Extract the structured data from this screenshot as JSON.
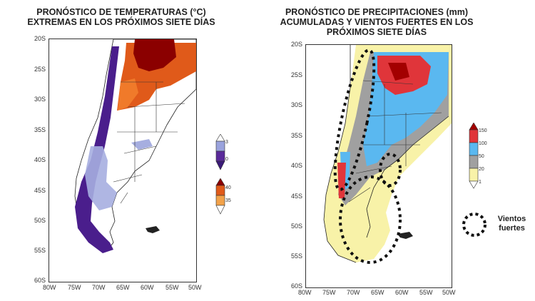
{
  "left_panel": {
    "title_line1": "PRONÓSTICO DE TEMPERATURAS (°C)",
    "title_line2": "EXTREMAS EN LOS PRÓXIMOS SIETE DÍAS",
    "lat_labels": [
      "20S",
      "25S",
      "30S",
      "35S",
      "40S",
      "45S",
      "50S",
      "55S",
      "60S"
    ],
    "lon_labels": [
      "80W",
      "75W",
      "70W",
      "65W",
      "60W",
      "55W",
      "50W"
    ],
    "legend_cold": {
      "labels": [
        "3",
        "0"
      ],
      "colors": [
        "#9aa3dd",
        "#5a2a9a",
        "#3b1a78"
      ]
    },
    "legend_hot": {
      "labels": [
        "40",
        "35"
      ],
      "colors": [
        "#8b0000",
        "#e05a1a",
        "#f2a24a"
      ]
    }
  },
  "right_panel": {
    "title_line1": "PRONÓSTICO DE PRECIPITACIONES (mm)",
    "title_line2": "ACUMULADAS Y VIENTOS FUERTES EN LOS",
    "title_line3": "PRÓXIMOS SIETE DÍAS",
    "lat_labels": [
      "20S",
      "25S",
      "30S",
      "35S",
      "40S",
      "45S",
      "50S",
      "55S",
      "60S"
    ],
    "lon_labels": [
      "80W",
      "75W",
      "70W",
      "65W",
      "60W",
      "55W",
      "50W"
    ],
    "legend_precip": {
      "labels": [
        "150",
        "100",
        "50",
        "20",
        "1"
      ],
      "colors": [
        "#a30000",
        "#e0353a",
        "#5ab8f0",
        "#a0a0a0",
        "#f8f2a8"
      ]
    },
    "wind_label_line1": "Vientos",
    "wind_label_line2": "fuertes"
  }
}
